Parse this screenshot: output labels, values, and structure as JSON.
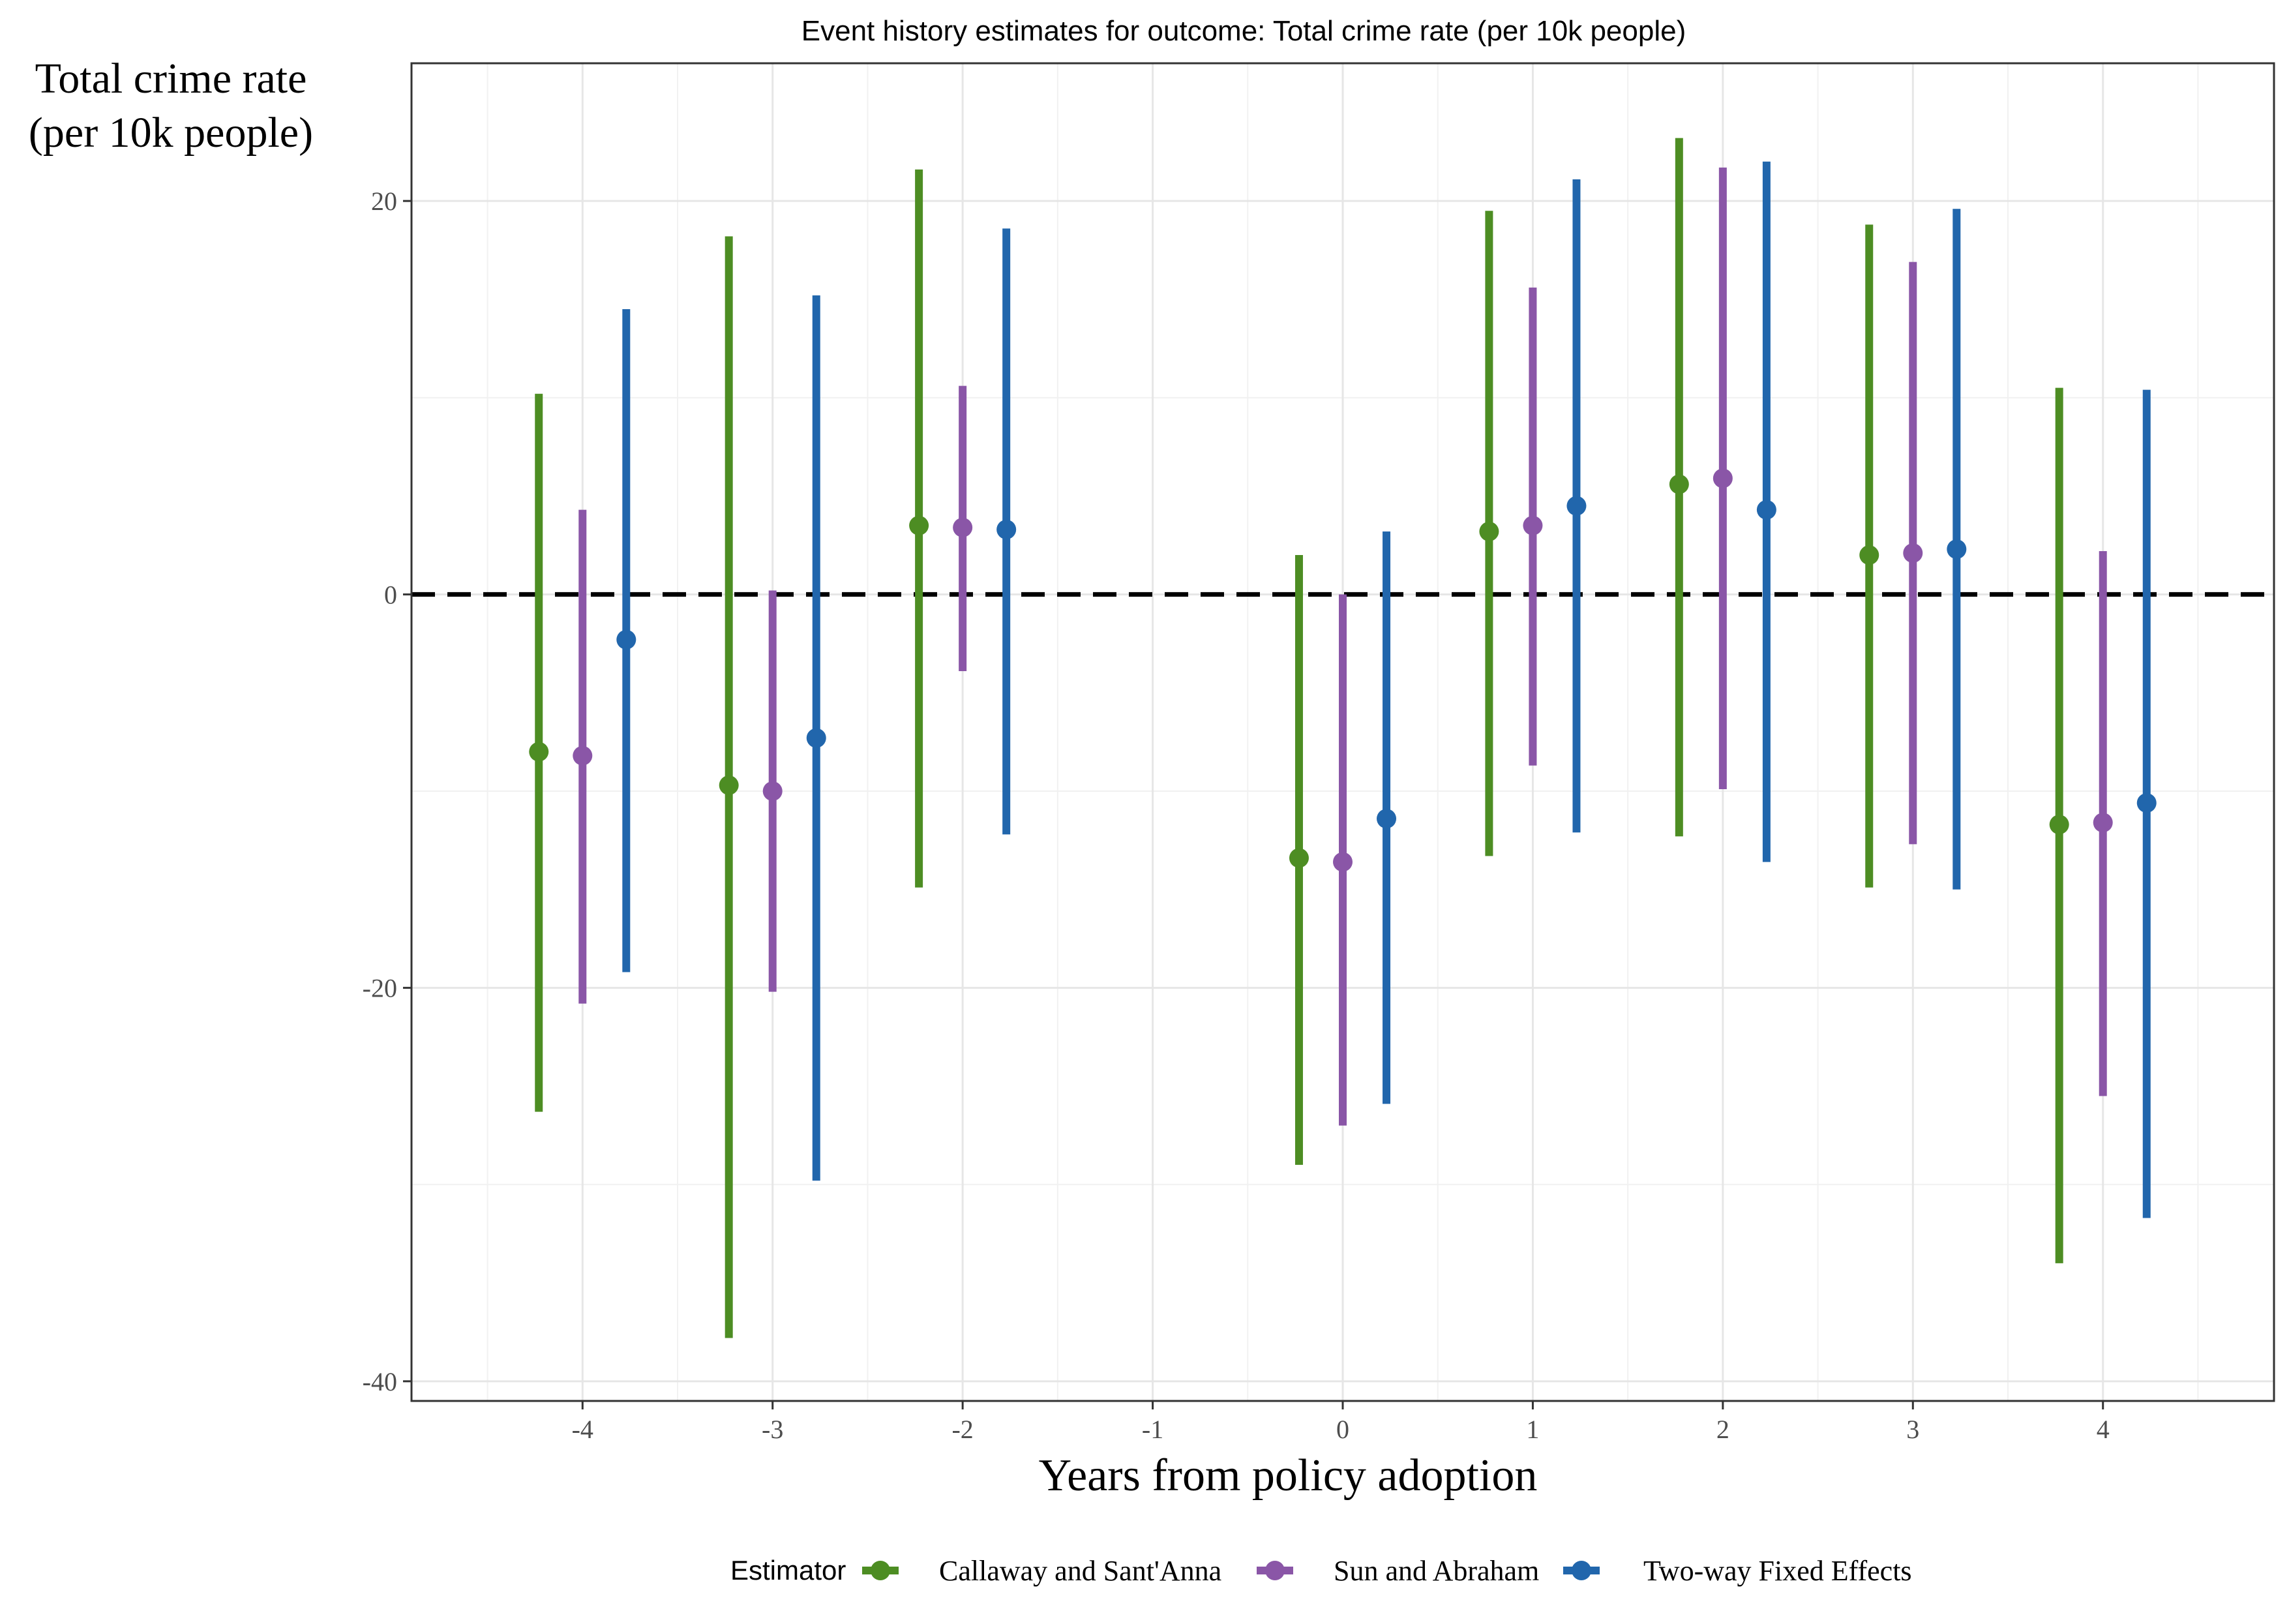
{
  "chart_data": {
    "type": "scatter",
    "title": "Event history estimates for outcome: Total crime rate (per 10k people)",
    "xlabel": "Years from policy adoption",
    "ylabel_lines": [
      "Total crime rate",
      "(per 10k people)"
    ],
    "x_ticks": [
      -4,
      -3,
      -2,
      -1,
      0,
      1,
      2,
      3,
      4
    ],
    "y_ticks": [
      -40,
      -20,
      0,
      20
    ],
    "xlim": [
      -4.9,
      4.9
    ],
    "ylim": [
      -41.0,
      27.0
    ],
    "reference_line": 0,
    "grid": true,
    "legend": {
      "title": "Estimator",
      "position": "bottom"
    },
    "series": [
      {
        "name": "Callaway and Sant'Anna",
        "color": "#4d8d23",
        "x": [
          -4,
          -3,
          -2,
          0,
          1,
          2,
          3,
          4
        ],
        "estimate": [
          -8.0,
          -9.7,
          3.5,
          -13.4,
          3.2,
          5.6,
          2.0,
          -11.7
        ],
        "ci_low": [
          -26.3,
          -37.8,
          -14.9,
          -29.0,
          -13.3,
          -12.3,
          -14.9,
          -34.0
        ],
        "ci_high": [
          10.2,
          18.2,
          21.6,
          2.0,
          19.5,
          23.2,
          18.8,
          10.5
        ]
      },
      {
        "name": "Sun and Abraham",
        "color": "#8a56a7",
        "x": [
          -4,
          -3,
          -2,
          0,
          1,
          2,
          3,
          4
        ],
        "estimate": [
          -8.2,
          -10.0,
          3.4,
          -13.6,
          3.5,
          5.9,
          2.1,
          -11.6
        ],
        "ci_low": [
          -20.8,
          -20.2,
          -3.9,
          -27.0,
          -8.7,
          -9.9,
          -12.7,
          -25.5
        ],
        "ci_high": [
          4.3,
          0.2,
          10.6,
          0.0,
          15.6,
          21.7,
          16.9,
          2.2
        ]
      },
      {
        "name": "Two-way Fixed Effects",
        "color": "#2166ac",
        "x": [
          -4,
          -3,
          -2,
          0,
          1,
          2,
          3,
          4
        ],
        "estimate": [
          -2.3,
          -7.3,
          3.3,
          -11.4,
          4.5,
          4.3,
          2.3,
          -10.6
        ],
        "ci_low": [
          -19.2,
          -29.8,
          -12.2,
          -25.9,
          -12.1,
          -13.6,
          -15.0,
          -31.7
        ],
        "ci_high": [
          14.5,
          15.2,
          18.6,
          3.2,
          21.1,
          22.0,
          19.6,
          10.4
        ]
      }
    ]
  }
}
